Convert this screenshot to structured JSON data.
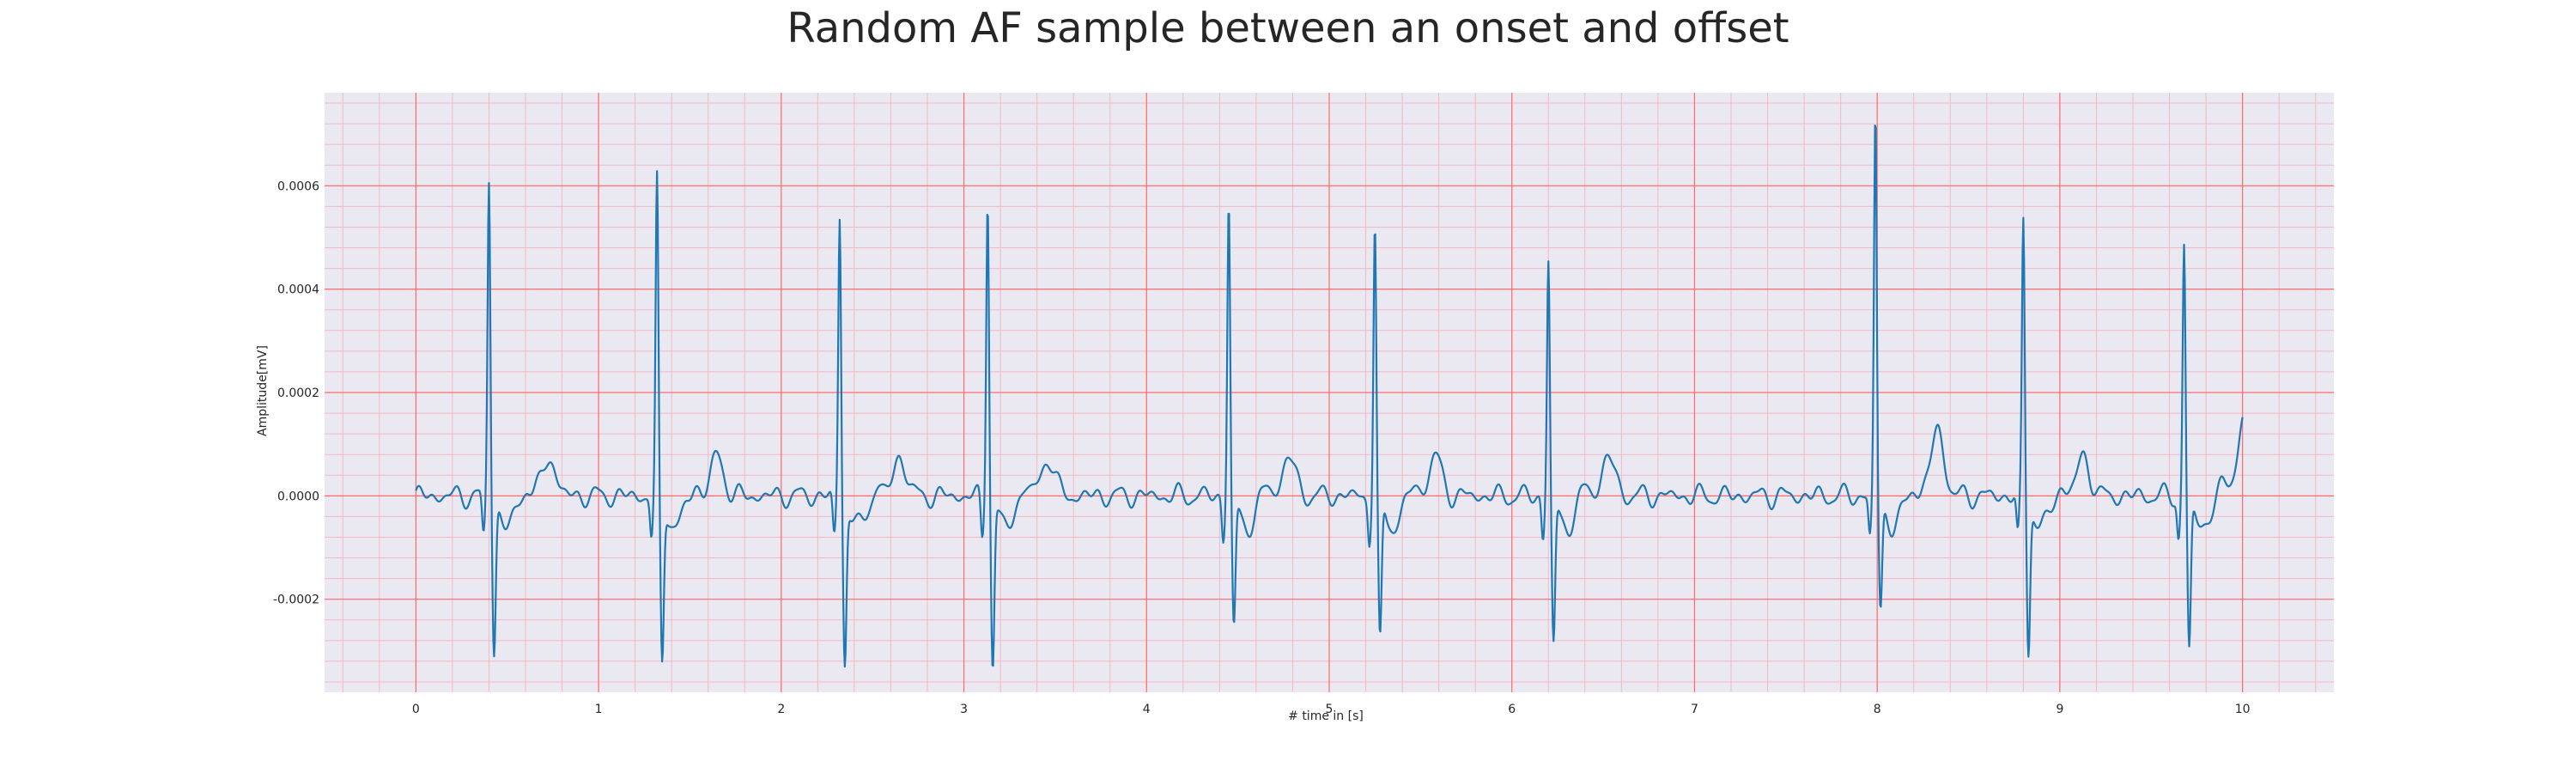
{
  "chart_data": {
    "type": "line",
    "title": "Random AF sample between an onset and offset",
    "xlabel": "# time in [s]",
    "ylabel": "Amplitude[mV]",
    "xlim": [
      -0.5,
      10.5
    ],
    "ylim": [
      -0.00038,
      0.00078
    ],
    "xticks": [
      0,
      1,
      2,
      3,
      4,
      5,
      6,
      7,
      8,
      9,
      10
    ],
    "yticks": [
      -0.0002,
      0.0,
      0.0002,
      0.0004,
      0.0006
    ],
    "ytick_labels": [
      "-0.0002",
      "0.0000",
      "0.0002",
      "0.0004",
      "0.0006"
    ],
    "grid": {
      "major": true,
      "minor": true,
      "major_color": "#ff6b6b",
      "minor_color": "#f2b9c4"
    },
    "background_color": "#eae9f2",
    "series": [
      {
        "color": "#1f77b4",
        "beats": [
          {
            "t": 0.4,
            "r": 0.00062,
            "s": -0.00029
          },
          {
            "t": 1.32,
            "r": 0.00061,
            "s": -0.00031
          },
          {
            "t": 2.32,
            "r": 0.000545,
            "s": -0.00031
          },
          {
            "t": 3.13,
            "r": 0.00059,
            "s": -0.00032
          },
          {
            "t": 4.45,
            "r": 0.000575,
            "s": -0.00025
          },
          {
            "t": 5.25,
            "r": 0.000525,
            "s": -0.00028
          },
          {
            "t": 6.2,
            "r": 0.00046,
            "s": -0.00028
          },
          {
            "t": 7.99,
            "r": 0.00074,
            "s": -0.00021
          },
          {
            "t": 8.8,
            "r": 0.000535,
            "s": -0.00029
          },
          {
            "t": 9.68,
            "r": 0.00049,
            "s": -0.00029
          }
        ],
        "t_end": 10.0,
        "end_value": 7e-05
      }
    ]
  }
}
